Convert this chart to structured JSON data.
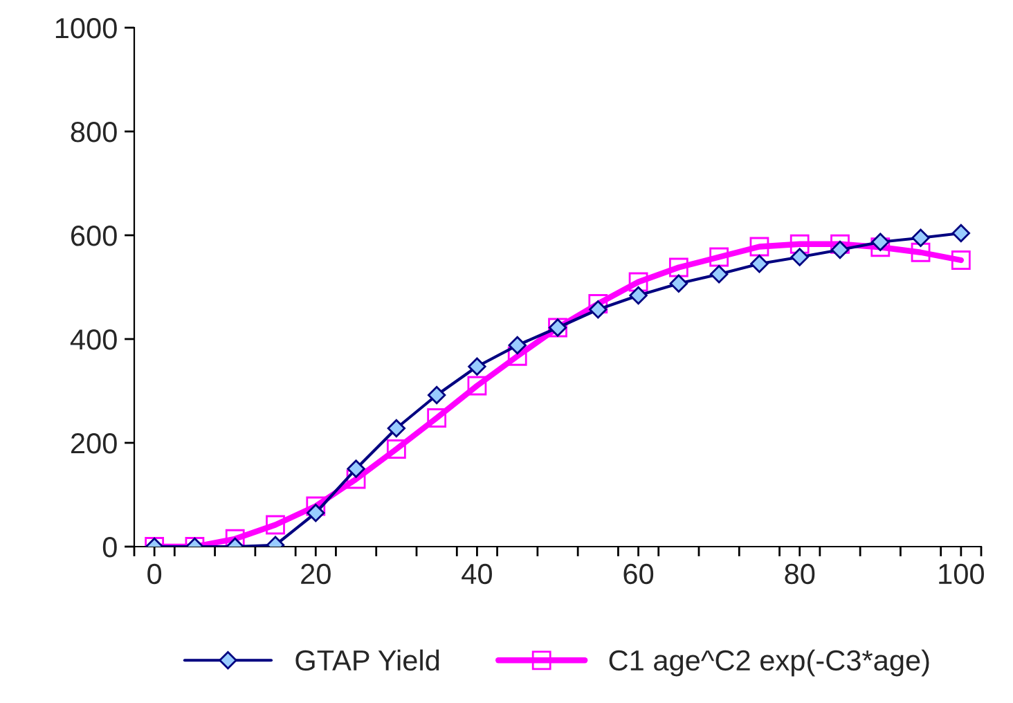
{
  "chart_data": {
    "type": "line",
    "x": [
      0,
      5,
      10,
      15,
      20,
      25,
      30,
      35,
      40,
      45,
      50,
      55,
      60,
      65,
      70,
      75,
      80,
      85,
      90,
      95,
      100
    ],
    "series": [
      {
        "name": "GTAP Yield",
        "color": "#000080",
        "marker": "diamond",
        "values": [
          0,
          0,
          0,
          3,
          65,
          150,
          228,
          292,
          347,
          388,
          422,
          457,
          484,
          507,
          525,
          545,
          558,
          572,
          587,
          595,
          604
        ]
      },
      {
        "name": "C1 age^C2 exp(-C3*age)",
        "color": "#ff00ff",
        "marker": "square",
        "values": [
          0,
          0,
          15,
          42,
          78,
          130,
          188,
          248,
          310,
          367,
          422,
          468,
          510,
          538,
          558,
          578,
          583,
          583,
          577,
          567,
          552
        ]
      }
    ],
    "xlim": [
      -2.5,
      102.5
    ],
    "xticks": [
      0,
      20,
      40,
      60,
      80,
      100,
      {
        "value": -2.5,
        "label": null
      },
      {
        "value": 2.5,
        "label": null
      },
      {
        "value": 7.5,
        "label": null
      },
      {
        "value": 12.5,
        "label": null
      },
      {
        "value": 17.5,
        "label": null
      },
      {
        "value": 22.5,
        "label": null
      },
      {
        "value": 27.5,
        "label": null
      },
      {
        "value": 32.5,
        "label": null
      },
      {
        "value": 37.5,
        "label": null
      },
      {
        "value": 42.5,
        "label": null
      },
      {
        "value": 47.5,
        "label": null
      },
      {
        "value": 52.5,
        "label": null
      },
      {
        "value": 57.5,
        "label": null
      },
      {
        "value": 62.5,
        "label": null
      },
      {
        "value": 67.5,
        "label": null
      },
      {
        "value": 72.5,
        "label": null
      },
      {
        "value": 77.5,
        "label": null
      },
      {
        "value": 82.5,
        "label": null
      },
      {
        "value": 87.5,
        "label": null
      },
      {
        "value": 92.5,
        "label": null
      },
      {
        "value": 97.5,
        "label": null
      },
      {
        "value": 102.5,
        "label": null
      }
    ],
    "ylim": [
      0,
      1000
    ],
    "yticks": [
      0,
      200,
      400,
      600,
      800,
      1000
    ],
    "grid": false,
    "legend": "bottom"
  }
}
